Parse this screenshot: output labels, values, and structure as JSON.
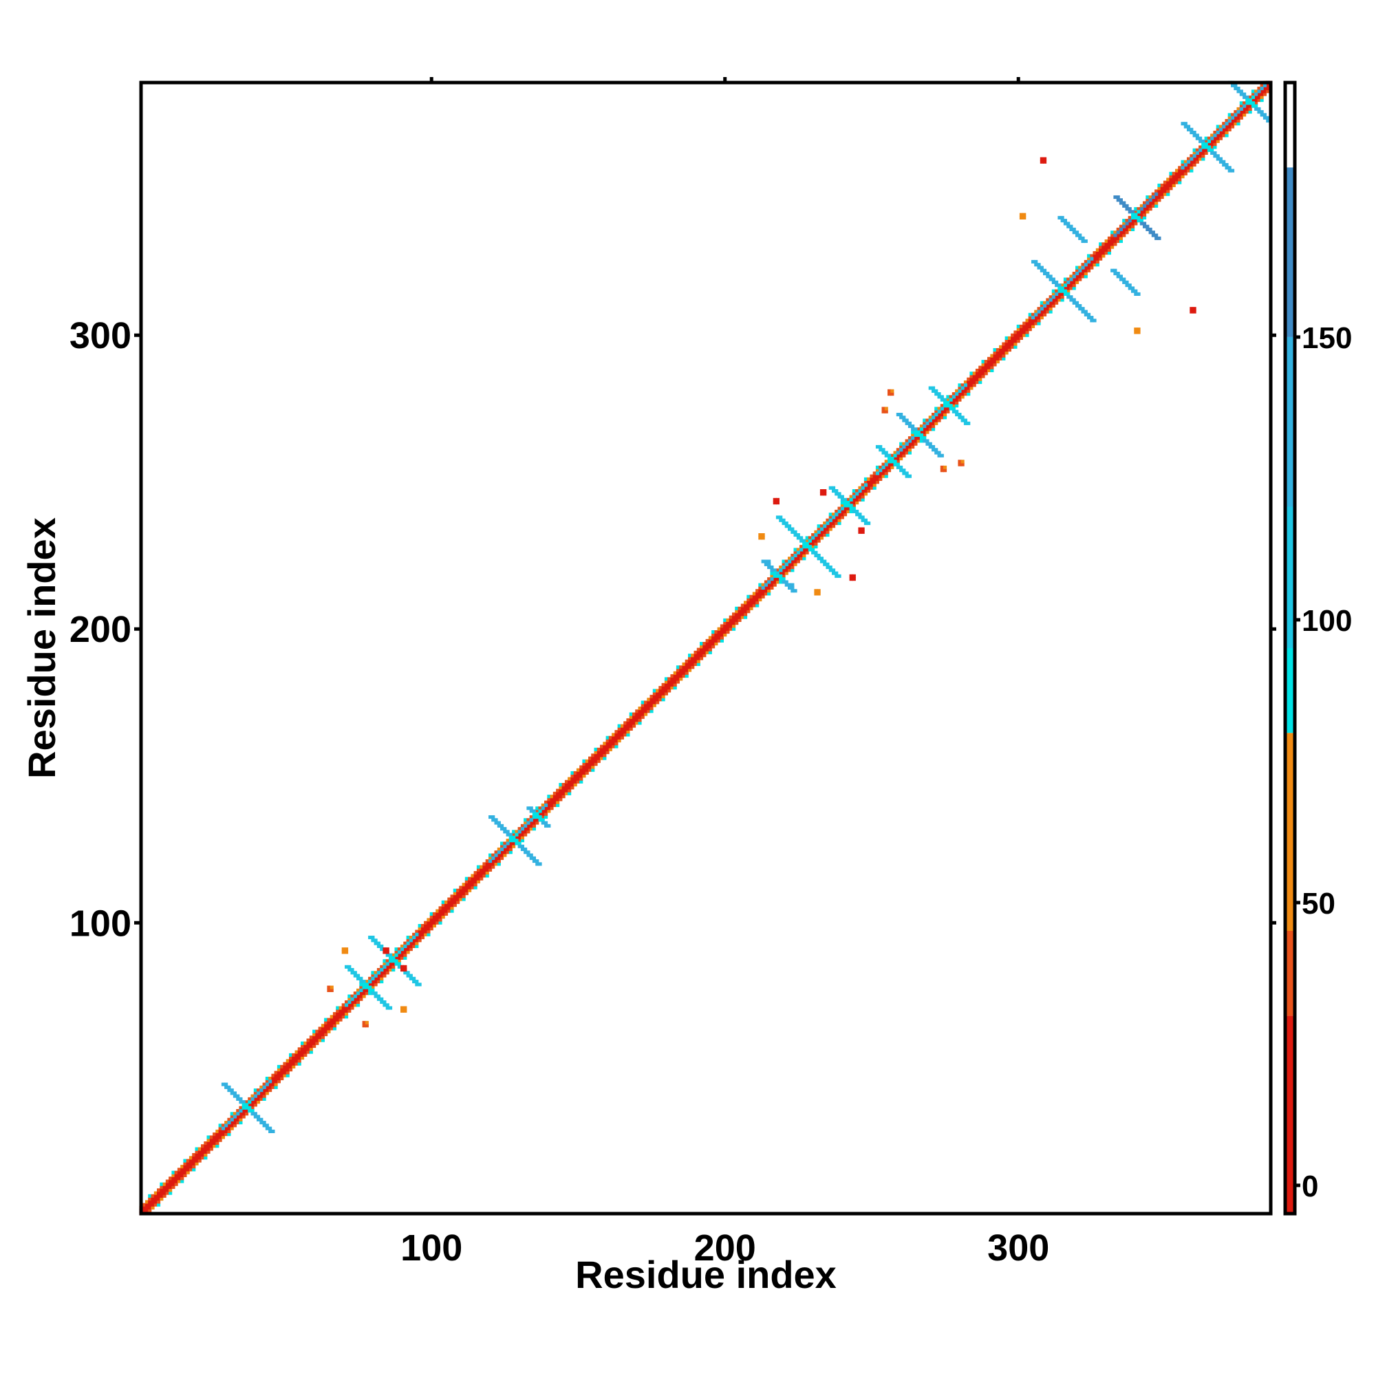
{
  "chart_data": {
    "type": "heatmap",
    "title": "",
    "xlabel": "Residue index",
    "ylabel": "Residue index",
    "xlim": [
      1,
      386
    ],
    "ylim": [
      1,
      386
    ],
    "x_ticks": [
      100,
      200,
      300
    ],
    "y_ticks": [
      100,
      200,
      300
    ],
    "grid": false,
    "colorbar": {
      "ticks": [
        0,
        50,
        100,
        150
      ],
      "range": [
        -5,
        195
      ],
      "bands": [
        {
          "from": -5,
          "to": 30,
          "color": "#dd1a0f"
        },
        {
          "from": 30,
          "to": 45,
          "color": "#e8521a"
        },
        {
          "from": 45,
          "to": 80,
          "color": "#f08a12"
        },
        {
          "from": 80,
          "to": 95,
          "color": "#00e3e6"
        },
        {
          "from": 95,
          "to": 120,
          "color": "#1fc6e4"
        },
        {
          "from": 120,
          "to": 150,
          "color": "#33b1e0"
        },
        {
          "from": 150,
          "to": 180,
          "color": "#3f8bc6"
        },
        {
          "from": 180,
          "to": 195,
          "color": "#ffffff"
        }
      ]
    },
    "diagonal": {
      "from": 1,
      "to": 386
    },
    "x_motifs": [
      {
        "center": [
          37,
          37
        ],
        "arm": 8,
        "value": 140
      },
      {
        "center": [
          78,
          78
        ],
        "arm": 7,
        "value": 105
      },
      {
        "center": [
          87,
          87
        ],
        "arm": 8,
        "value": 110
      },
      {
        "center": [
          128,
          128
        ],
        "arm": 8,
        "value": 145
      },
      {
        "center": [
          136,
          136
        ],
        "arm": 3,
        "value": 140
      },
      {
        "center": [
          218,
          218
        ],
        "arm": 5,
        "value": 130
      },
      {
        "center": [
          228,
          228
        ],
        "arm": 10,
        "value": 110
      },
      {
        "center": [
          242,
          242
        ],
        "arm": 6,
        "value": 115
      },
      {
        "center": [
          257,
          257
        ],
        "arm": 5,
        "value": 110
      },
      {
        "center": [
          266,
          266
        ],
        "arm": 7,
        "value": 130
      },
      {
        "center": [
          276,
          276
        ],
        "arm": 6,
        "value": 115
      },
      {
        "center": [
          315,
          315
        ],
        "arm": 10,
        "value": 145
      },
      {
        "center": [
          340,
          340
        ],
        "arm": 7,
        "value": 150
      },
      {
        "center": [
          364,
          364
        ],
        "arm": 8,
        "value": 140
      },
      {
        "center": [
          379,
          379
        ],
        "arm": 7,
        "value": 130
      }
    ],
    "off_diagonal_strands": [
      {
        "start": [
          314,
          340
        ],
        "end": [
          322,
          332
        ],
        "value": 145
      },
      {
        "start": [
          332,
          322
        ],
        "end": [
          340,
          314
        ],
        "value": 145
      }
    ],
    "off_diagonal_patches": [
      {
        "x": 308,
        "y": 359,
        "value": 10
      },
      {
        "x": 359,
        "y": 308,
        "value": 10
      },
      {
        "x": 217,
        "y": 243,
        "value": 20
      },
      {
        "x": 243,
        "y": 217,
        "value": 20
      },
      {
        "x": 212,
        "y": 231,
        "value": 55
      },
      {
        "x": 231,
        "y": 212,
        "value": 55
      },
      {
        "x": 70,
        "y": 90,
        "value": 55
      },
      {
        "x": 90,
        "y": 70,
        "value": 55
      },
      {
        "x": 77,
        "y": 65,
        "value": 40
      },
      {
        "x": 65,
        "y": 77,
        "value": 40
      },
      {
        "x": 84,
        "y": 90,
        "value": 20
      },
      {
        "x": 90,
        "y": 84,
        "value": 20
      },
      {
        "x": 254,
        "y": 274,
        "value": 40
      },
      {
        "x": 274,
        "y": 254,
        "value": 40
      },
      {
        "x": 246,
        "y": 233,
        "value": 10
      },
      {
        "x": 233,
        "y": 246,
        "value": 10
      },
      {
        "x": 301,
        "y": 340,
        "value": 60
      },
      {
        "x": 340,
        "y": 301,
        "value": 60
      },
      {
        "x": 280,
        "y": 256,
        "value": 40
      },
      {
        "x": 256,
        "y": 280,
        "value": 40
      },
      {
        "x": 214,
        "y": 222,
        "value": 130
      },
      {
        "x": 222,
        "y": 214,
        "value": 130
      }
    ]
  }
}
